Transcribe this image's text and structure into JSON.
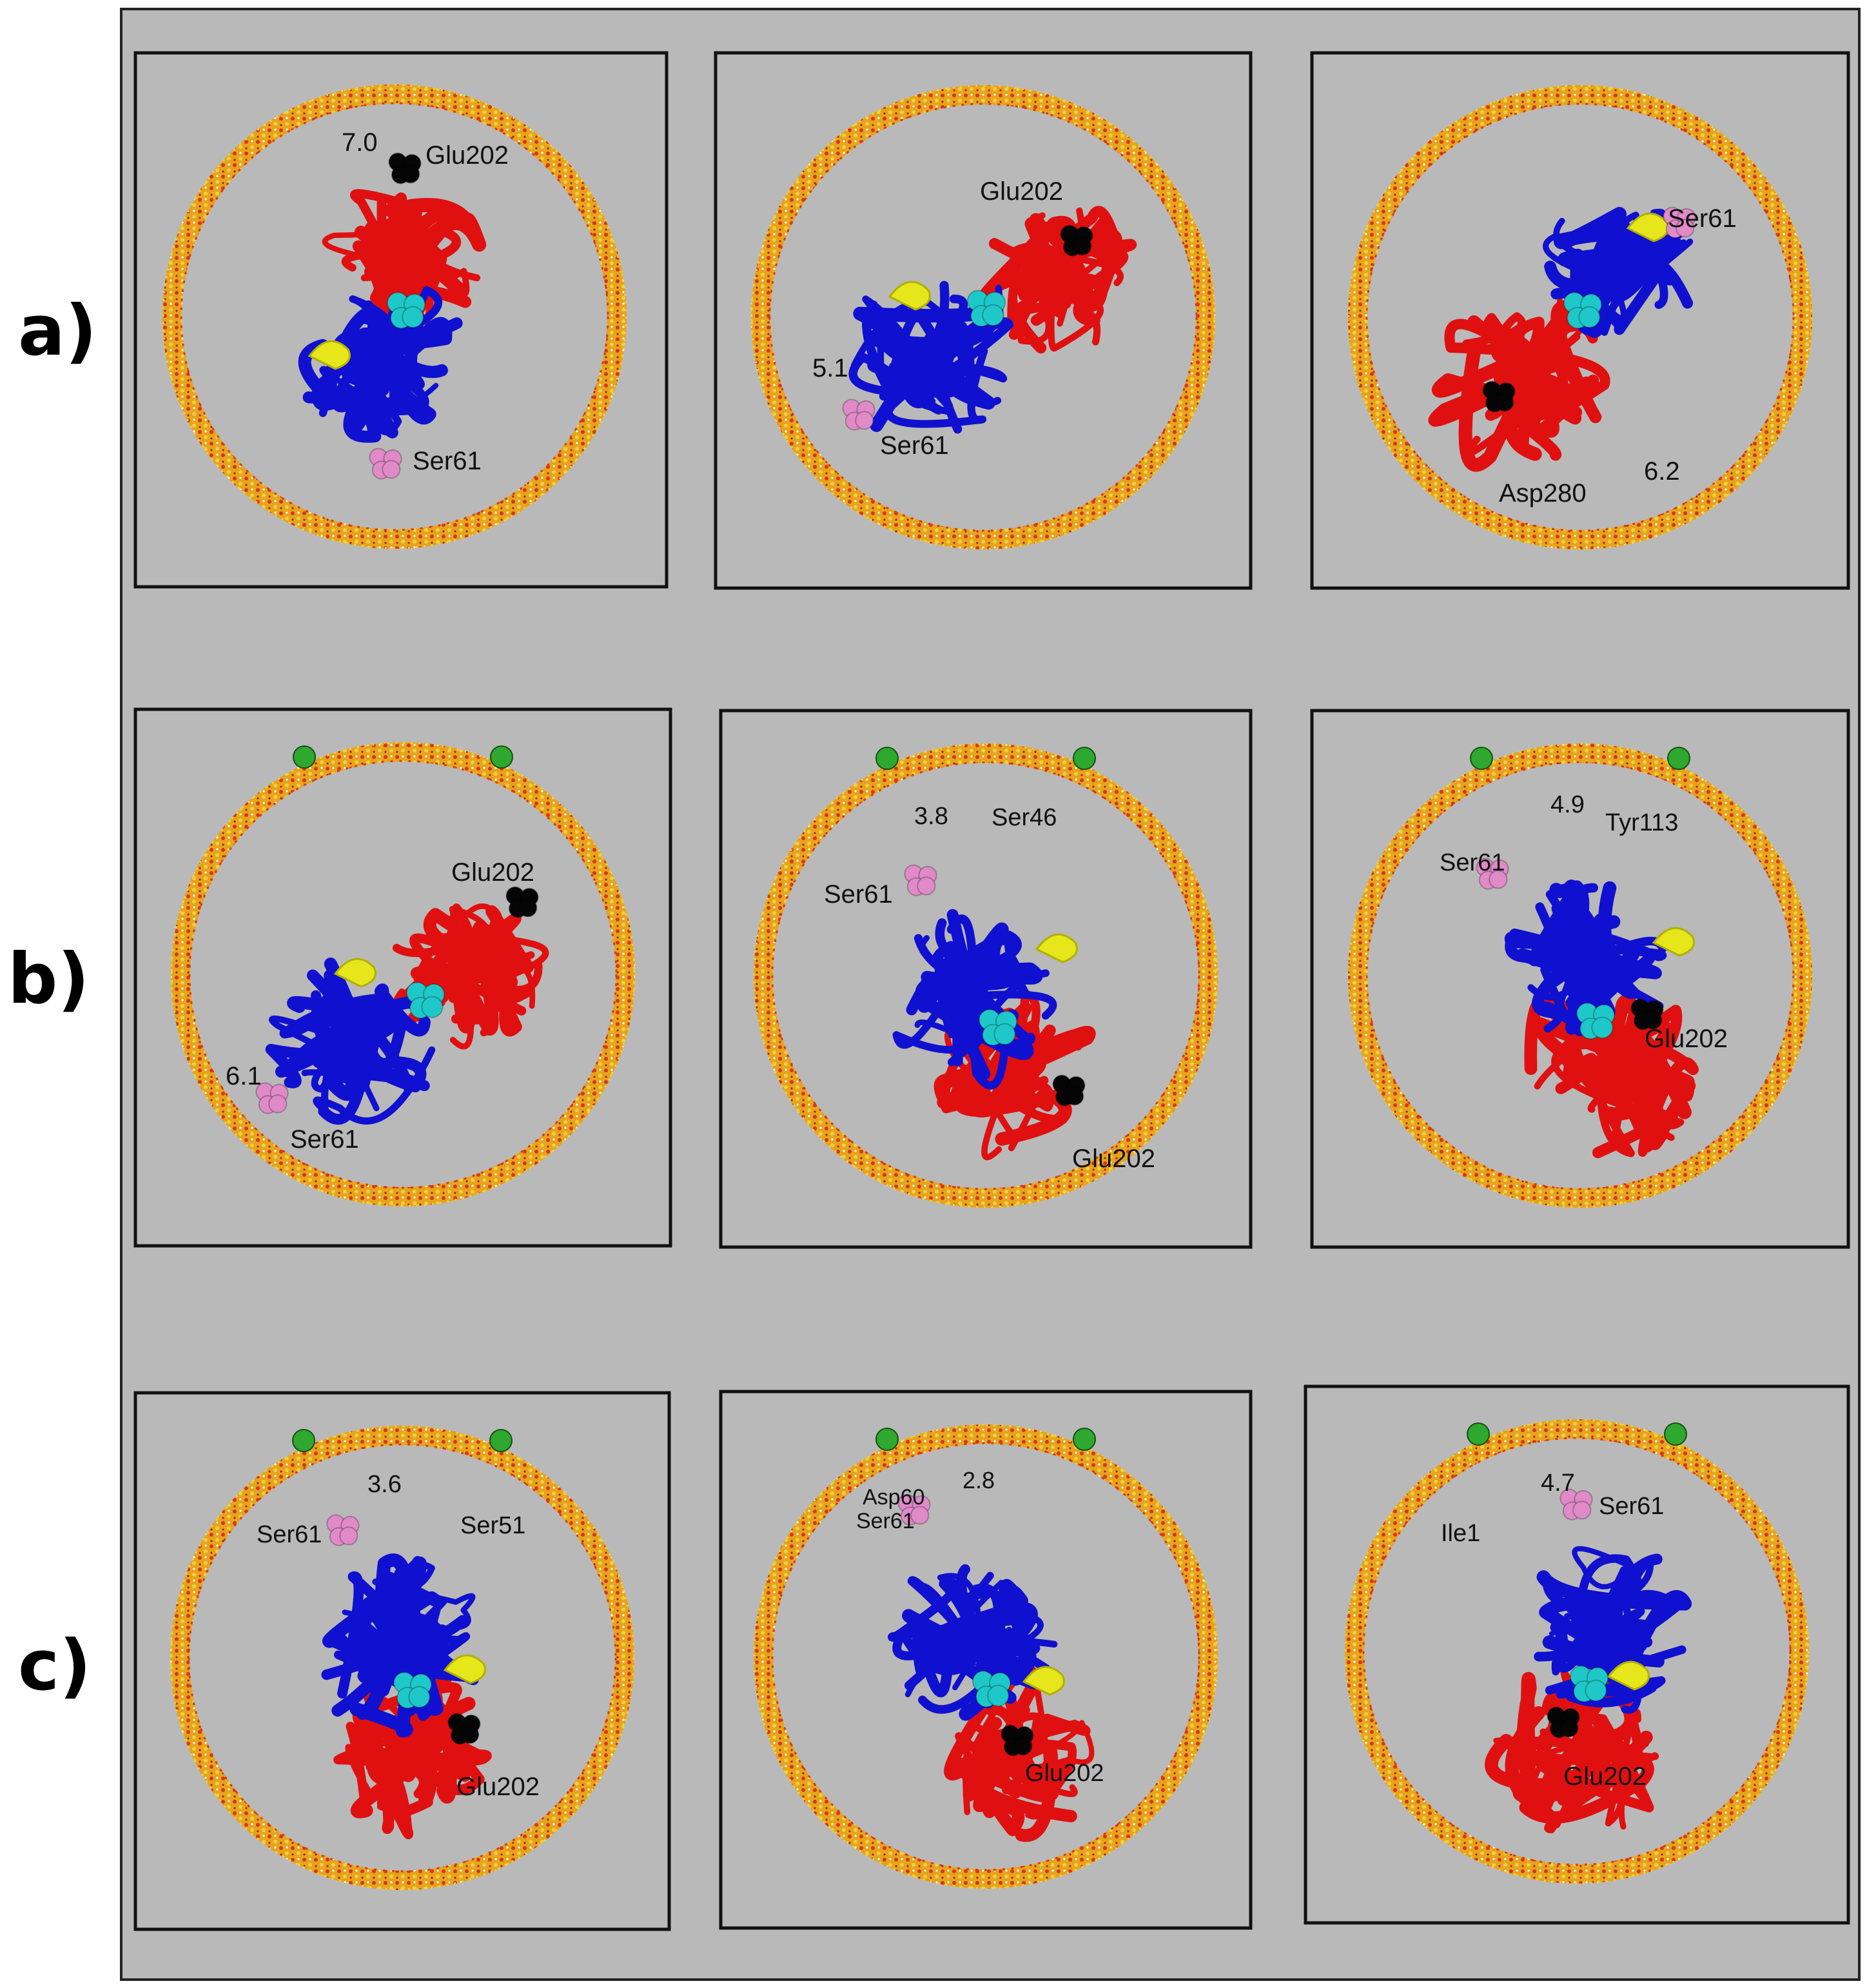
{
  "rows": [
    {
      "label": "a)",
      "panels": [
        {
          "labels": [
            {
              "text": "7.0",
              "color": "#111111"
            },
            {
              "text": "Glu202",
              "color": "#111111"
            },
            {
              "text": "Ser61",
              "color": "#111111"
            }
          ]
        },
        {
          "labels": [
            {
              "text": "Glu202",
              "color": "#111111"
            },
            {
              "text": "5.1",
              "color": "#111111"
            },
            {
              "text": "Ser61",
              "color": "#111111"
            }
          ]
        },
        {
          "labels": [
            {
              "text": "Ser61",
              "color": "#111111"
            },
            {
              "text": "Asp280",
              "color": "#111111"
            },
            {
              "text": "6.2",
              "color": "#111111"
            }
          ]
        }
      ]
    },
    {
      "label": "b)",
      "panels": [
        {
          "labels": [
            {
              "text": "Glu202",
              "color": "#111111"
            },
            {
              "text": "6.1",
              "color": "#111111"
            },
            {
              "text": "Ser61",
              "color": "#111111"
            }
          ]
        },
        {
          "labels": [
            {
              "text": "3.8",
              "color": "#111111"
            },
            {
              "text": "Ser46",
              "color": "#111111"
            },
            {
              "text": "Ser61",
              "color": "#111111"
            },
            {
              "text": "Glu202",
              "color": "#111111"
            }
          ]
        },
        {
          "labels": [
            {
              "text": "4.9",
              "color": "#111111"
            },
            {
              "text": "Tyr113",
              "color": "#111111"
            },
            {
              "text": "Ser61",
              "color": "#111111"
            },
            {
              "text": "Glu202",
              "color": "#111111"
            }
          ]
        }
      ]
    },
    {
      "label": "c)",
      "panels": [
        {
          "labels": [
            {
              "text": "3.6",
              "color": "#111111"
            },
            {
              "text": "Ser61",
              "color": "#111111"
            },
            {
              "text": "Ser51",
              "color": "#111111"
            },
            {
              "text": "Glu202",
              "color": "#111111"
            }
          ]
        },
        {
          "labels": [
            {
              "text": "2.8",
              "color": "#111111"
            },
            {
              "text": "Asp60",
              "color": "#111111"
            },
            {
              "text": "Ser61",
              "color": "#111111"
            },
            {
              "text": "Glu202",
              "color": "#111111"
            }
          ]
        },
        {
          "labels": [
            {
              "text": "4.7",
              "color": "#111111"
            },
            {
              "text": "Ser61",
              "color": "#111111"
            },
            {
              "text": "Ile1",
              "color": "#111111"
            },
            {
              "text": "Glu202",
              "color": "#111111"
            }
          ]
        }
      ]
    }
  ],
  "colors": {
    "background": "#b9b9b9",
    "ring": "#e2a21c",
    "ring_dots": "#d83a1a",
    "domain_a": "#e01010",
    "domain_b": "#1010d0",
    "loop": "#e6e61a",
    "center_atoms": "#1fc8c8",
    "ser61_atoms": "#e08ac8",
    "glu202_atoms": "#050505",
    "lipid_green": "#2ea82e",
    "oxygen": "#e02020",
    "hydrogen": "#f2f2f2"
  }
}
